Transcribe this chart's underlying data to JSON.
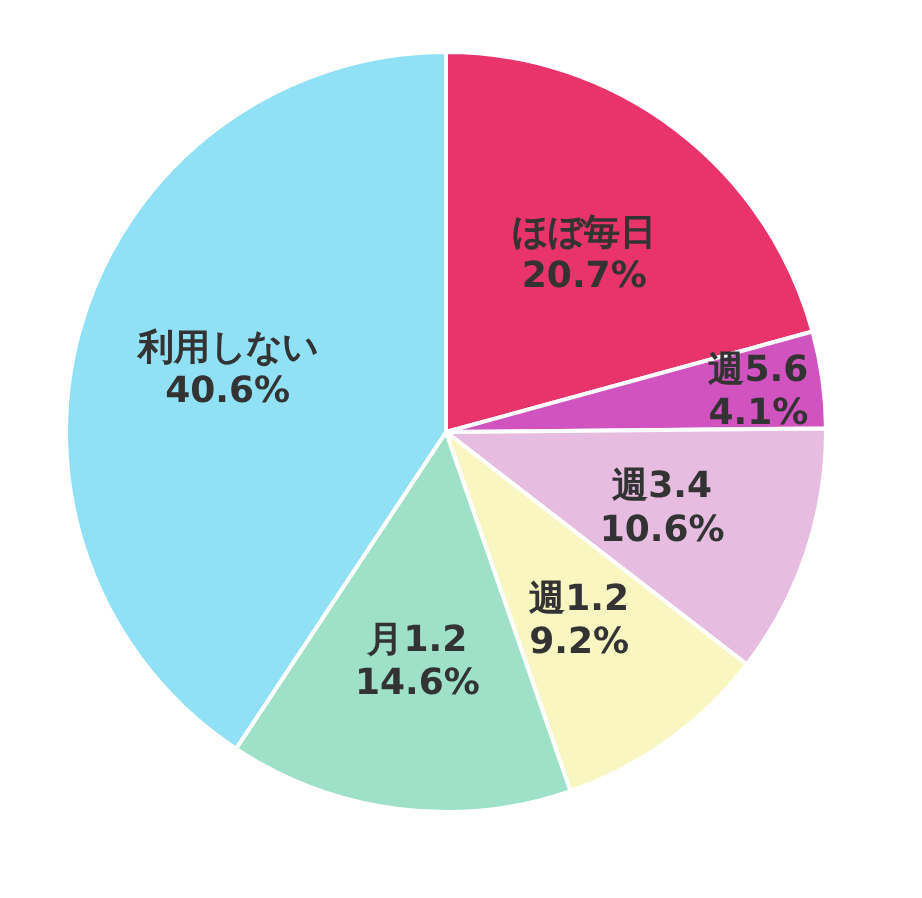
{
  "chart_data": {
    "type": "pie",
    "categories": [
      "ほぼ毎日",
      "週5.6",
      "週3.4",
      "週1.2",
      "月1.2",
      "利用しない"
    ],
    "values": [
      20.7,
      4.1,
      10.6,
      9.2,
      14.6,
      40.6
    ],
    "value_labels": [
      "20.7%",
      "4.1%",
      "10.6%",
      "9.2%",
      "14.6%",
      "40.6%"
    ],
    "colors": [
      "#e8336b",
      "#d153c0",
      "#e6bde0",
      "#f9f6c1",
      "#9ee0c8",
      "#90e1f5"
    ],
    "legend": false
  }
}
